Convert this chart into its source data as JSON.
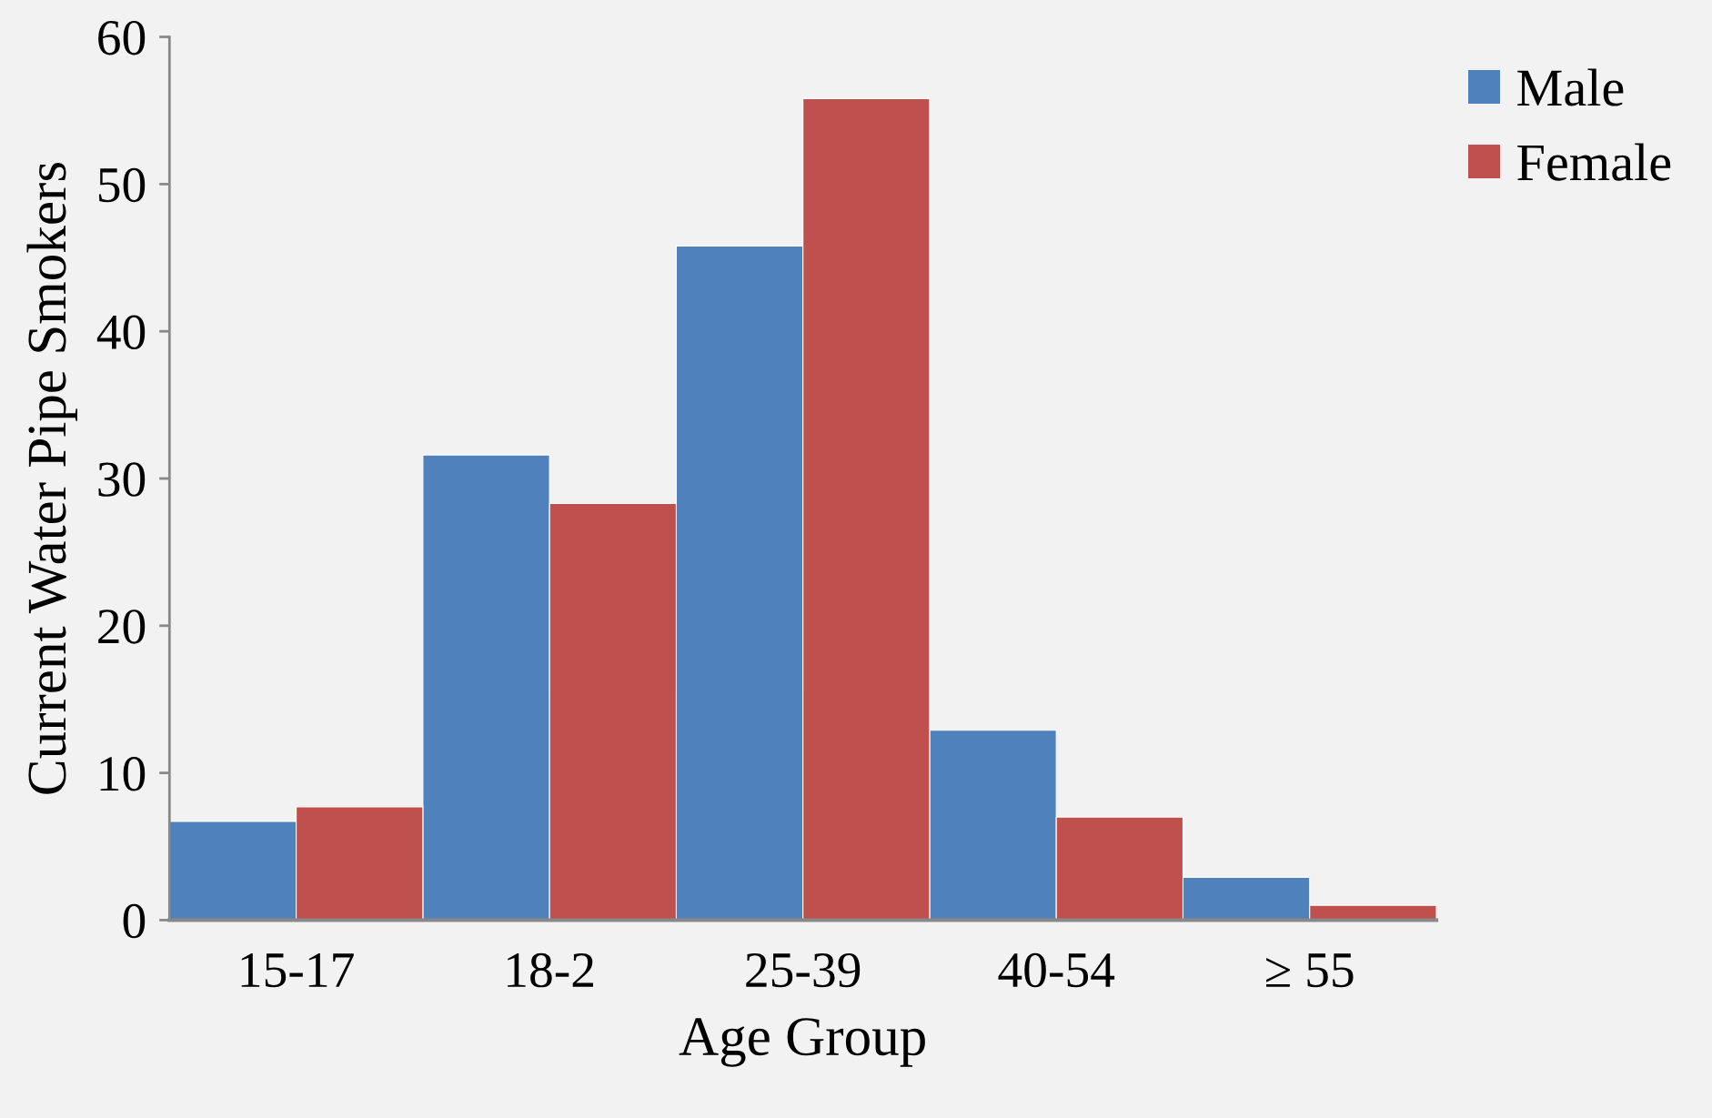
{
  "chart_data": {
    "type": "bar",
    "xlabel": "Age Group",
    "ylabel": "Current Water Pipe Smokers",
    "categories": [
      "15-17",
      "18-2",
      "25-39",
      "40-54",
      "≥ 55"
    ],
    "series": [
      {
        "name": "Male",
        "color": "#4f81bd",
        "values": [
          6.7,
          31.6,
          45.8,
          12.9,
          2.9
        ]
      },
      {
        "name": "Female",
        "color": "#c0504d",
        "values": [
          7.7,
          28.3,
          55.8,
          7.0,
          1.0
        ]
      }
    ],
    "ylim": [
      0,
      60
    ],
    "yticks": [
      0,
      10,
      20,
      30,
      40,
      50,
      60
    ],
    "grid": false,
    "legend": "top right"
  }
}
